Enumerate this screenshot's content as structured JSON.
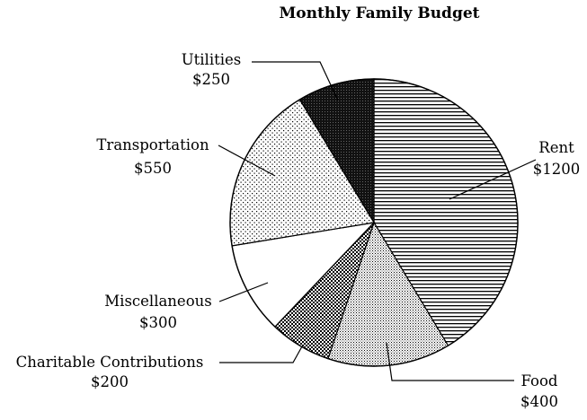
{
  "chart_data": {
    "type": "pie",
    "title": "Monthly Family Budget",
    "slices": [
      {
        "label": "Rent",
        "value_label": "$1200",
        "value": 1200,
        "pattern": "horizontal-lines"
      },
      {
        "label": "Food",
        "value_label": "$400",
        "value": 400,
        "pattern": "fine-dots"
      },
      {
        "label": "Charitable Contributions",
        "value_label": "$200",
        "value": 200,
        "pattern": "checker"
      },
      {
        "label": "Miscellaneous",
        "value_label": "$300",
        "value": 300,
        "pattern": "solid-white"
      },
      {
        "label": "Transportation",
        "value_label": "$550",
        "value": 550,
        "pattern": "sparse-dots"
      },
      {
        "label": "Utilities",
        "value_label": "$250",
        "value": 250,
        "pattern": "dense-black"
      }
    ],
    "start_angle": "12 o'clock",
    "direction": "clockwise"
  }
}
